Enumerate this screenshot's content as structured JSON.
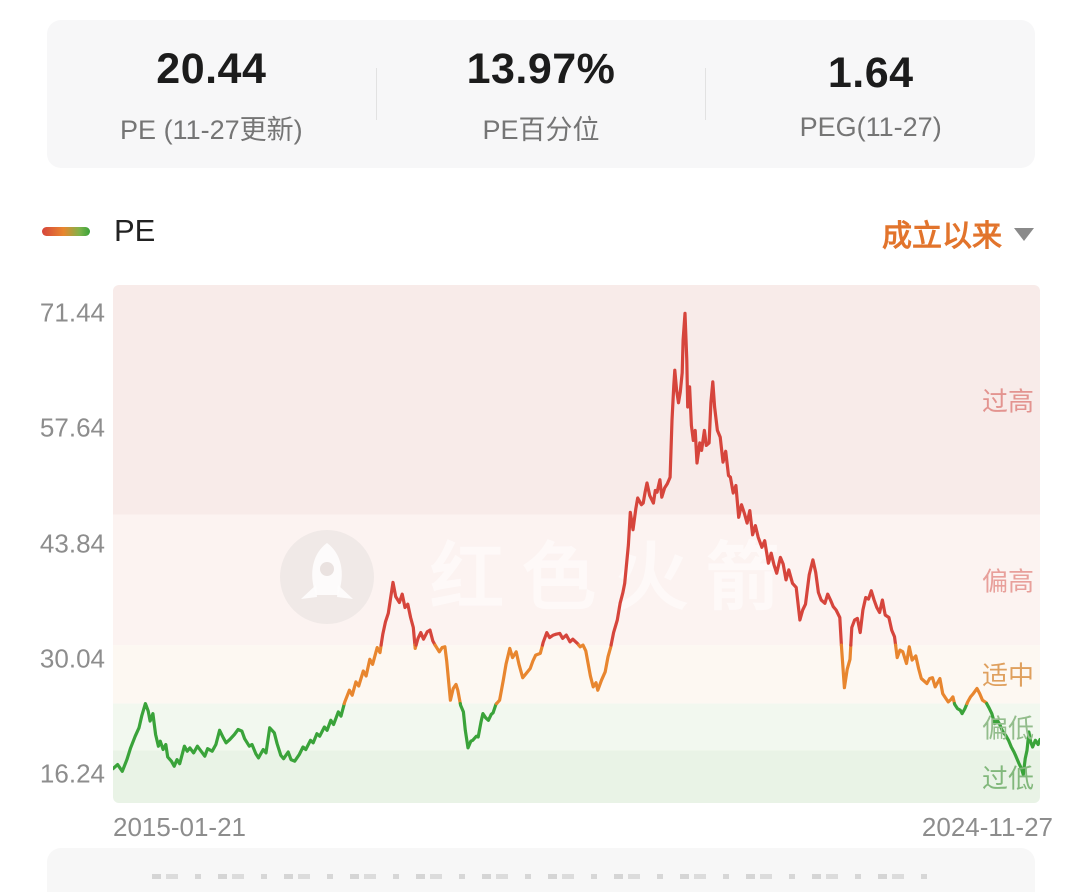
{
  "stats": {
    "items": [
      {
        "value": "20.44",
        "label": "PE (11-27更新)"
      },
      {
        "value": "13.97%",
        "label": "PE百分位"
      },
      {
        "value": "1.64",
        "label": "PEG(11-27)"
      }
    ]
  },
  "legend": {
    "series_label": "PE"
  },
  "range_selector": {
    "label": "成立以来",
    "icon": "caret-down-icon",
    "color": "#e2742c"
  },
  "watermark": {
    "text": "红色火箭",
    "icon": "rocket-logo"
  },
  "chart_data": {
    "type": "line",
    "series_name": "PE",
    "x_unit": "fraction_of_range",
    "x_start_label": "2015-01-21",
    "x_end_label": "2024-11-27",
    "y_ticks": [
      71.44,
      57.64,
      43.84,
      30.04,
      16.24
    ],
    "ylim": [
      12.8,
      74.8
    ],
    "grid": false,
    "legend_position": "top-left",
    "zones": [
      {
        "label": "过高",
        "from": 47.3,
        "to": 74.8,
        "bg": "#f8ebe9",
        "label_color": "#e39490"
      },
      {
        "label": "偏高",
        "from": 31.7,
        "to": 47.3,
        "bg": "#fcf3f1",
        "label_color": "#e8a09b"
      },
      {
        "label": "适中",
        "from": 24.7,
        "to": 31.7,
        "bg": "#fdf8f2",
        "label_color": "#dfa05e"
      },
      {
        "label": "偏低",
        "from": 19.1,
        "to": 24.7,
        "bg": "#f2f8ef",
        "label_color": "#93bd8c"
      },
      {
        "label": "过低",
        "from": 12.8,
        "to": 19.1,
        "bg": "#e9f3e6",
        "label_color": "#82b87c"
      }
    ],
    "line_colors": {
      "high": "#d6453c",
      "mid": "#e8862f",
      "low": "#3aa33a"
    },
    "color_thresholds": [
      31.7,
      24.7
    ],
    "points": [
      [
        0.0,
        16.9
      ],
      [
        0.005,
        17.4
      ],
      [
        0.01,
        16.6
      ],
      [
        0.015,
        18.0
      ],
      [
        0.019,
        19.4
      ],
      [
        0.024,
        20.8
      ],
      [
        0.028,
        21.8
      ],
      [
        0.031,
        23.2
      ],
      [
        0.035,
        24.7
      ],
      [
        0.038,
        23.8
      ],
      [
        0.04,
        22.6
      ],
      [
        0.043,
        23.5
      ],
      [
        0.046,
        21.0
      ],
      [
        0.049,
        19.6
      ],
      [
        0.051,
        20.2
      ],
      [
        0.054,
        19.2
      ],
      [
        0.057,
        19.8
      ],
      [
        0.059,
        18.3
      ],
      [
        0.063,
        17.8
      ],
      [
        0.066,
        17.2
      ],
      [
        0.069,
        18.0
      ],
      [
        0.072,
        17.5
      ],
      [
        0.077,
        19.6
      ],
      [
        0.08,
        19.0
      ],
      [
        0.083,
        19.4
      ],
      [
        0.087,
        18.8
      ],
      [
        0.091,
        19.6
      ],
      [
        0.095,
        19.0
      ],
      [
        0.099,
        18.4
      ],
      [
        0.102,
        19.3
      ],
      [
        0.107,
        19.0
      ],
      [
        0.111,
        19.8
      ],
      [
        0.115,
        21.5
      ],
      [
        0.119,
        20.6
      ],
      [
        0.122,
        20.0
      ],
      [
        0.126,
        20.4
      ],
      [
        0.131,
        21.0
      ],
      [
        0.135,
        21.6
      ],
      [
        0.139,
        21.4
      ],
      [
        0.142,
        20.5
      ],
      [
        0.147,
        19.6
      ],
      [
        0.15,
        19.8
      ],
      [
        0.154,
        18.7
      ],
      [
        0.157,
        18.2
      ],
      [
        0.162,
        19.2
      ],
      [
        0.165,
        18.8
      ],
      [
        0.169,
        21.8
      ],
      [
        0.174,
        21.2
      ],
      [
        0.177,
        19.9
      ],
      [
        0.181,
        18.5
      ],
      [
        0.184,
        18.1
      ],
      [
        0.189,
        18.9
      ],
      [
        0.192,
        18.0
      ],
      [
        0.196,
        17.8
      ],
      [
        0.201,
        18.6
      ],
      [
        0.205,
        19.5
      ],
      [
        0.208,
        19.2
      ],
      [
        0.213,
        20.3
      ],
      [
        0.216,
        20.0
      ],
      [
        0.22,
        21.1
      ],
      [
        0.223,
        20.8
      ],
      [
        0.228,
        21.9
      ],
      [
        0.231,
        21.5
      ],
      [
        0.235,
        22.7
      ],
      [
        0.238,
        22.2
      ],
      [
        0.243,
        23.7
      ],
      [
        0.246,
        23.2
      ],
      [
        0.25,
        24.9
      ],
      [
        0.255,
        26.3
      ],
      [
        0.258,
        25.7
      ],
      [
        0.262,
        27.3
      ],
      [
        0.265,
        26.8
      ],
      [
        0.27,
        28.6
      ],
      [
        0.273,
        28.0
      ],
      [
        0.277,
        30.0
      ],
      [
        0.28,
        29.4
      ],
      [
        0.285,
        31.4
      ],
      [
        0.288,
        30.8
      ],
      [
        0.291,
        33.0
      ],
      [
        0.294,
        34.5
      ],
      [
        0.297,
        35.5
      ],
      [
        0.299,
        37.0
      ],
      [
        0.302,
        39.2
      ],
      [
        0.305,
        37.5
      ],
      [
        0.309,
        36.8
      ],
      [
        0.312,
        37.8
      ],
      [
        0.315,
        36.2
      ],
      [
        0.318,
        36.6
      ],
      [
        0.321,
        35.0
      ],
      [
        0.324,
        33.8
      ],
      [
        0.326,
        31.3
      ],
      [
        0.329,
        32.5
      ],
      [
        0.332,
        33.2
      ],
      [
        0.335,
        32.4
      ],
      [
        0.339,
        33.3
      ],
      [
        0.342,
        33.5
      ],
      [
        0.345,
        32.2
      ],
      [
        0.348,
        31.6
      ],
      [
        0.352,
        30.9
      ],
      [
        0.355,
        31.4
      ],
      [
        0.358,
        31.5
      ],
      [
        0.36,
        29.8
      ],
      [
        0.364,
        25.1
      ],
      [
        0.367,
        26.5
      ],
      [
        0.37,
        27.0
      ],
      [
        0.372,
        26.3
      ],
      [
        0.375,
        24.5
      ],
      [
        0.378,
        23.7
      ],
      [
        0.38,
        21.5
      ],
      [
        0.383,
        19.4
      ],
      [
        0.386,
        20.2
      ],
      [
        0.388,
        20.3
      ],
      [
        0.392,
        20.8
      ],
      [
        0.394,
        20.7
      ],
      [
        0.397,
        22.5
      ],
      [
        0.399,
        23.5
      ],
      [
        0.402,
        23.0
      ],
      [
        0.405,
        22.7
      ],
      [
        0.408,
        23.4
      ],
      [
        0.41,
        23.6
      ],
      [
        0.413,
        24.6
      ],
      [
        0.417,
        25.1
      ],
      [
        0.421,
        27.5
      ],
      [
        0.424,
        29.4
      ],
      [
        0.428,
        31.3
      ],
      [
        0.431,
        30.2
      ],
      [
        0.435,
        30.9
      ],
      [
        0.438,
        29.4
      ],
      [
        0.442,
        27.8
      ],
      [
        0.445,
        28.2
      ],
      [
        0.45,
        28.9
      ],
      [
        0.453,
        29.8
      ],
      [
        0.456,
        30.5
      ],
      [
        0.461,
        30.7
      ],
      [
        0.464,
        32.0
      ],
      [
        0.468,
        33.2
      ],
      [
        0.471,
        32.6
      ],
      [
        0.475,
        32.9
      ],
      [
        0.478,
        33.0
      ],
      [
        0.482,
        33.1
      ],
      [
        0.485,
        32.5
      ],
      [
        0.489,
        32.9
      ],
      [
        0.493,
        32.1
      ],
      [
        0.496,
        32.4
      ],
      [
        0.501,
        31.9
      ],
      [
        0.504,
        31.5
      ],
      [
        0.507,
        31.7
      ],
      [
        0.51,
        31.0
      ],
      [
        0.515,
        28.0
      ],
      [
        0.518,
        26.7
      ],
      [
        0.521,
        27.2
      ],
      [
        0.523,
        26.3
      ],
      [
        0.527,
        27.5
      ],
      [
        0.531,
        28.5
      ],
      [
        0.534,
        30.3
      ],
      [
        0.537,
        31.5
      ],
      [
        0.54,
        33.2
      ],
      [
        0.544,
        34.7
      ],
      [
        0.547,
        36.7
      ],
      [
        0.55,
        38.0
      ],
      [
        0.552,
        39.1
      ],
      [
        0.556,
        43.7
      ],
      [
        0.558,
        47.6
      ],
      [
        0.561,
        45.5
      ],
      [
        0.564,
        48.0
      ],
      [
        0.566,
        49.3
      ],
      [
        0.57,
        48.5
      ],
      [
        0.572,
        48.7
      ],
      [
        0.574,
        50.0
      ],
      [
        0.576,
        51.1
      ],
      [
        0.579,
        49.6
      ],
      [
        0.583,
        48.7
      ],
      [
        0.585,
        50.2
      ],
      [
        0.587,
        50.0
      ],
      [
        0.59,
        51.5
      ],
      [
        0.592,
        49.4
      ],
      [
        0.595,
        50.5
      ],
      [
        0.598,
        51.0
      ],
      [
        0.601,
        51.8
      ],
      [
        0.603,
        58.6
      ],
      [
        0.605,
        62.8
      ],
      [
        0.606,
        64.6
      ],
      [
        0.608,
        62.2
      ],
      [
        0.61,
        60.7
      ],
      [
        0.612,
        62.0
      ],
      [
        0.614,
        64.3
      ],
      [
        0.615,
        68.2
      ],
      [
        0.617,
        71.4
      ],
      [
        0.619,
        65.8
      ],
      [
        0.62,
        60.2
      ],
      [
        0.622,
        62.6
      ],
      [
        0.624,
        58.0
      ],
      [
        0.626,
        56.2
      ],
      [
        0.628,
        57.4
      ],
      [
        0.63,
        53.5
      ],
      [
        0.633,
        55.9
      ],
      [
        0.635,
        55.0
      ],
      [
        0.638,
        57.4
      ],
      [
        0.64,
        55.6
      ],
      [
        0.643,
        55.9
      ],
      [
        0.645,
        60.7
      ],
      [
        0.647,
        63.2
      ],
      [
        0.649,
        60.2
      ],
      [
        0.652,
        57.4
      ],
      [
        0.655,
        56.6
      ],
      [
        0.658,
        53.6
      ],
      [
        0.661,
        54.9
      ],
      [
        0.664,
        52.0
      ],
      [
        0.666,
        51.8
      ],
      [
        0.669,
        49.9
      ],
      [
        0.672,
        50.8
      ],
      [
        0.675,
        47.0
      ],
      [
        0.678,
        48.5
      ],
      [
        0.681,
        47.5
      ],
      [
        0.684,
        46.3
      ],
      [
        0.687,
        47.8
      ],
      [
        0.69,
        44.9
      ],
      [
        0.693,
        46.0
      ],
      [
        0.696,
        44.6
      ],
      [
        0.7,
        43.4
      ],
      [
        0.703,
        44.2
      ],
      [
        0.707,
        41.5
      ],
      [
        0.71,
        42.7
      ],
      [
        0.713,
        41.3
      ],
      [
        0.716,
        40.3
      ],
      [
        0.72,
        42.2
      ],
      [
        0.723,
        41.4
      ],
      [
        0.726,
        39.5
      ],
      [
        0.729,
        40.7
      ],
      [
        0.733,
        39.1
      ],
      [
        0.737,
        38.6
      ],
      [
        0.741,
        34.7
      ],
      [
        0.744,
        35.9
      ],
      [
        0.747,
        36.6
      ],
      [
        0.751,
        40.1
      ],
      [
        0.755,
        41.9
      ],
      [
        0.758,
        40.4
      ],
      [
        0.761,
        38.0
      ],
      [
        0.764,
        37.1
      ],
      [
        0.768,
        36.7
      ],
      [
        0.771,
        37.8
      ],
      [
        0.774,
        37.1
      ],
      [
        0.777,
        36.3
      ],
      [
        0.78,
        35.9
      ],
      [
        0.784,
        35.0
      ],
      [
        0.786,
        31.3
      ],
      [
        0.789,
        26.6
      ],
      [
        0.792,
        28.8
      ],
      [
        0.795,
        30.0
      ],
      [
        0.797,
        33.8
      ],
      [
        0.8,
        34.7
      ],
      [
        0.803,
        34.9
      ],
      [
        0.806,
        33.2
      ],
      [
        0.809,
        35.9
      ],
      [
        0.812,
        37.4
      ],
      [
        0.815,
        37.2
      ],
      [
        0.818,
        38.2
      ],
      [
        0.821,
        37.1
      ],
      [
        0.824,
        36.2
      ],
      [
        0.827,
        35.6
      ],
      [
        0.83,
        37.1
      ],
      [
        0.833,
        35.3
      ],
      [
        0.837,
        35.0
      ],
      [
        0.84,
        33.5
      ],
      [
        0.843,
        32.7
      ],
      [
        0.846,
        30.2
      ],
      [
        0.849,
        31.1
      ],
      [
        0.852,
        30.9
      ],
      [
        0.856,
        29.5
      ],
      [
        0.859,
        31.5
      ],
      [
        0.862,
        29.9
      ],
      [
        0.866,
        30.4
      ],
      [
        0.869,
        28.9
      ],
      [
        0.872,
        27.7
      ],
      [
        0.875,
        27.4
      ],
      [
        0.878,
        27.1
      ],
      [
        0.881,
        27.7
      ],
      [
        0.884,
        27.8
      ],
      [
        0.887,
        26.7
      ],
      [
        0.89,
        27.3
      ],
      [
        0.892,
        27.7
      ],
      [
        0.895,
        25.9
      ],
      [
        0.898,
        25.4
      ],
      [
        0.901,
        24.9
      ],
      [
        0.904,
        25.2
      ],
      [
        0.906,
        25.5
      ],
      [
        0.908,
        24.6
      ],
      [
        0.911,
        24.1
      ],
      [
        0.914,
        23.9
      ],
      [
        0.916,
        23.5
      ],
      [
        0.919,
        24.1
      ],
      [
        0.922,
        24.9
      ],
      [
        0.925,
        25.5
      ],
      [
        0.928,
        25.9
      ],
      [
        0.932,
        26.5
      ],
      [
        0.935,
        25.9
      ],
      [
        0.938,
        25.1
      ],
      [
        0.942,
        24.8
      ],
      [
        0.945,
        24.2
      ],
      [
        0.948,
        23.5
      ],
      [
        0.951,
        22.3
      ],
      [
        0.954,
        22.7
      ],
      [
        0.957,
        22.1
      ],
      [
        0.96,
        21.3
      ],
      [
        0.963,
        20.9
      ],
      [
        0.966,
        20.3
      ],
      [
        0.969,
        19.5
      ],
      [
        0.972,
        18.9
      ],
      [
        0.974,
        18.4
      ],
      [
        0.977,
        17.6
      ],
      [
        0.98,
        16.9
      ],
      [
        0.982,
        16.2
      ],
      [
        0.984,
        18.1
      ],
      [
        0.986,
        19.1
      ],
      [
        0.988,
        21.3
      ],
      [
        0.99,
        20.1
      ],
      [
        0.992,
        19.5
      ],
      [
        0.995,
        20.3
      ],
      [
        0.998,
        19.8
      ],
      [
        1.0,
        20.4
      ]
    ]
  }
}
